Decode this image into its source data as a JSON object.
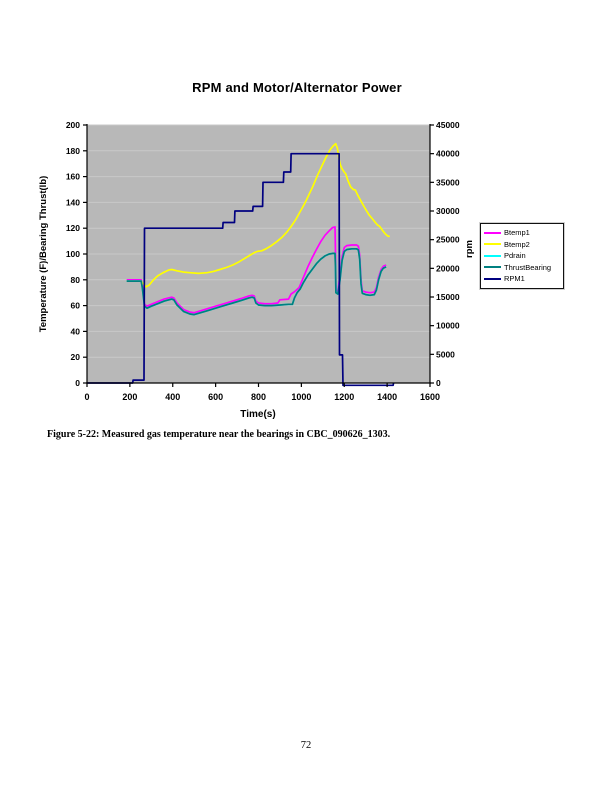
{
  "page": {
    "number": "72"
  },
  "figure_caption": "Figure 5-22:  Measured gas temperature near the bearings in CBC_090626_1303.",
  "chart_data": {
    "type": "line",
    "title": "RPM and Motor/Alternator Power",
    "xlabel": "Time(s)",
    "ylabel_left": "Temperature (F)/Bearing Thrust(lb)",
    "ylabel_right": "rpm",
    "xlim": [
      0,
      1600
    ],
    "x_ticks": [
      0,
      200,
      400,
      600,
      800,
      1000,
      1200,
      1400,
      1600
    ],
    "ylim_left": [
      0,
      200
    ],
    "y_ticks_left": [
      0,
      20,
      40,
      60,
      80,
      100,
      120,
      140,
      160,
      180,
      200
    ],
    "ylim_right": [
      0,
      45000
    ],
    "y_ticks_right": [
      0,
      5000,
      10000,
      15000,
      20000,
      25000,
      30000,
      35000,
      40000,
      45000
    ],
    "grid": {
      "show": true,
      "color": "#c9c9c9",
      "left_axis_step": 20
    },
    "plot_bg": "#b8b8b8",
    "axis_color": "#000000",
    "legend_position": "right",
    "series": [
      {
        "name": "Btemp1",
        "color": "#FF00FF",
        "axis": "left",
        "width": 1.7,
        "points": [
          [
            185,
            80
          ],
          [
            253,
            80
          ],
          [
            258,
            76
          ],
          [
            268,
            61
          ],
          [
            280,
            59.5
          ],
          [
            300,
            61
          ],
          [
            330,
            63
          ],
          [
            360,
            65
          ],
          [
            395,
            66.5
          ],
          [
            405,
            66
          ],
          [
            420,
            62
          ],
          [
            450,
            57
          ],
          [
            480,
            55
          ],
          [
            500,
            54.5
          ],
          [
            520,
            55.5
          ],
          [
            560,
            57.5
          ],
          [
            600,
            59.5
          ],
          [
            640,
            61.5
          ],
          [
            680,
            63.5
          ],
          [
            720,
            65.5
          ],
          [
            755,
            67.5
          ],
          [
            770,
            68
          ],
          [
            780,
            67.5
          ],
          [
            788,
            63.5
          ],
          [
            800,
            62
          ],
          [
            830,
            61.5
          ],
          [
            860,
            61.5
          ],
          [
            890,
            62
          ],
          [
            900,
            64.5
          ],
          [
            940,
            65
          ],
          [
            952,
            69
          ],
          [
            970,
            71
          ],
          [
            990,
            74
          ],
          [
            1010,
            82
          ],
          [
            1030,
            90
          ],
          [
            1050,
            97
          ],
          [
            1070,
            103.5
          ],
          [
            1090,
            109.5
          ],
          [
            1110,
            114.5
          ],
          [
            1130,
            118
          ],
          [
            1145,
            120.5
          ],
          [
            1157,
            121
          ],
          [
            1159,
            100
          ],
          [
            1161,
            72
          ],
          [
            1170,
            71
          ],
          [
            1180,
            83
          ],
          [
            1190,
            98
          ],
          [
            1200,
            105
          ],
          [
            1212,
            106.5
          ],
          [
            1235,
            107
          ],
          [
            1258,
            107
          ],
          [
            1266,
            106
          ],
          [
            1272,
            99
          ],
          [
            1278,
            80
          ],
          [
            1284,
            71.5
          ],
          [
            1300,
            70.5
          ],
          [
            1320,
            70
          ],
          [
            1340,
            70.5
          ],
          [
            1350,
            74
          ],
          [
            1360,
            82
          ],
          [
            1372,
            88
          ],
          [
            1382,
            90.5
          ],
          [
            1395,
            91.5
          ]
        ]
      },
      {
        "name": "Btemp2",
        "color": "#FFFF00",
        "axis": "left",
        "width": 1.7,
        "points": [
          [
            185,
            79
          ],
          [
            253,
            79
          ],
          [
            262,
            77
          ],
          [
            275,
            74.5
          ],
          [
            290,
            76
          ],
          [
            310,
            80
          ],
          [
            330,
            83
          ],
          [
            355,
            85.5
          ],
          [
            380,
            87.5
          ],
          [
            395,
            88
          ],
          [
            420,
            87
          ],
          [
            450,
            86
          ],
          [
            480,
            85.5
          ],
          [
            520,
            85
          ],
          [
            560,
            85.5
          ],
          [
            590,
            86.5
          ],
          [
            620,
            88
          ],
          [
            650,
            89.5
          ],
          [
            680,
            91.5
          ],
          [
            710,
            94
          ],
          [
            740,
            97
          ],
          [
            765,
            99.5
          ],
          [
            780,
            101
          ],
          [
            795,
            102
          ],
          [
            815,
            102.5
          ],
          [
            835,
            104
          ],
          [
            860,
            106.5
          ],
          [
            885,
            109.5
          ],
          [
            910,
            113
          ],
          [
            935,
            117.5
          ],
          [
            955,
            122
          ],
          [
            975,
            127
          ],
          [
            995,
            133
          ],
          [
            1015,
            139
          ],
          [
            1035,
            146
          ],
          [
            1055,
            153
          ],
          [
            1075,
            161
          ],
          [
            1095,
            168
          ],
          [
            1115,
            175
          ],
          [
            1135,
            181
          ],
          [
            1150,
            184
          ],
          [
            1160,
            185.5
          ],
          [
            1168,
            182
          ],
          [
            1175,
            174
          ],
          [
            1182,
            169
          ],
          [
            1190,
            166
          ],
          [
            1200,
            163.5
          ],
          [
            1207,
            162
          ],
          [
            1217,
            157
          ],
          [
            1230,
            152
          ],
          [
            1242,
            150
          ],
          [
            1252,
            149.5
          ],
          [
            1262,
            146
          ],
          [
            1275,
            142
          ],
          [
            1290,
            137.5
          ],
          [
            1302,
            134
          ],
          [
            1315,
            130.5
          ],
          [
            1330,
            127.5
          ],
          [
            1345,
            124.5
          ],
          [
            1355,
            122.5
          ],
          [
            1365,
            121.5
          ],
          [
            1380,
            118
          ],
          [
            1392,
            115.5
          ],
          [
            1402,
            114
          ],
          [
            1412,
            113.5
          ]
        ]
      },
      {
        "name": "Pdrain",
        "color": "#00FFFF",
        "axis": "left",
        "width": 1.7,
        "points": [
          [
            185,
            79
          ],
          [
            253,
            79
          ],
          [
            258,
            74
          ],
          [
            268,
            59.5
          ],
          [
            280,
            58
          ],
          [
            300,
            59.5
          ],
          [
            330,
            61.5
          ],
          [
            360,
            63.5
          ],
          [
            395,
            65
          ],
          [
            405,
            64.5
          ],
          [
            420,
            60.5
          ],
          [
            450,
            55.5
          ],
          [
            480,
            53.5
          ],
          [
            500,
            53
          ],
          [
            520,
            54
          ],
          [
            560,
            56
          ],
          [
            600,
            58
          ],
          [
            640,
            60
          ],
          [
            680,
            62
          ],
          [
            720,
            64
          ],
          [
            755,
            66
          ],
          [
            770,
            66.5
          ],
          [
            780,
            66
          ],
          [
            788,
            62
          ],
          [
            800,
            60.5
          ],
          [
            830,
            60
          ],
          [
            860,
            60
          ],
          [
            900,
            60.5
          ],
          [
            940,
            61
          ],
          [
            958,
            61
          ],
          [
            968,
            66
          ],
          [
            980,
            70
          ],
          [
            995,
            73
          ],
          [
            1010,
            78
          ],
          [
            1030,
            83.5
          ],
          [
            1050,
            88
          ],
          [
            1070,
            92.5
          ],
          [
            1090,
            96
          ],
          [
            1110,
            98.5
          ],
          [
            1130,
            100
          ],
          [
            1145,
            100.5
          ],
          [
            1157,
            100.5
          ],
          [
            1159,
            90
          ],
          [
            1161,
            70
          ],
          [
            1170,
            69
          ],
          [
            1180,
            80
          ],
          [
            1190,
            95
          ],
          [
            1200,
            102
          ],
          [
            1212,
            103.5
          ],
          [
            1235,
            104
          ],
          [
            1258,
            104
          ],
          [
            1266,
            103
          ],
          [
            1272,
            96
          ],
          [
            1278,
            77
          ],
          [
            1284,
            69.5
          ],
          [
            1300,
            68.5
          ],
          [
            1320,
            68
          ],
          [
            1340,
            68.5
          ],
          [
            1350,
            72
          ],
          [
            1360,
            80
          ],
          [
            1372,
            86.5
          ],
          [
            1382,
            89
          ],
          [
            1395,
            90
          ]
        ]
      },
      {
        "name": "ThrustBearing",
        "color": "#008080",
        "axis": "left",
        "width": 1.7,
        "points": [
          [
            185,
            79
          ],
          [
            253,
            79
          ],
          [
            258,
            74
          ],
          [
            268,
            59.5
          ],
          [
            280,
            58
          ],
          [
            300,
            59.5
          ],
          [
            330,
            61.5
          ],
          [
            360,
            63.5
          ],
          [
            395,
            65
          ],
          [
            405,
            64.5
          ],
          [
            420,
            60.5
          ],
          [
            450,
            55.5
          ],
          [
            480,
            53.5
          ],
          [
            500,
            53
          ],
          [
            520,
            54
          ],
          [
            560,
            56
          ],
          [
            600,
            58
          ],
          [
            640,
            60
          ],
          [
            680,
            62
          ],
          [
            720,
            64
          ],
          [
            755,
            66
          ],
          [
            770,
            66.5
          ],
          [
            780,
            66
          ],
          [
            788,
            62
          ],
          [
            800,
            60.5
          ],
          [
            830,
            60
          ],
          [
            860,
            60
          ],
          [
            900,
            60.5
          ],
          [
            940,
            61
          ],
          [
            958,
            61
          ],
          [
            968,
            66
          ],
          [
            980,
            70
          ],
          [
            995,
            73
          ],
          [
            1010,
            78
          ],
          [
            1030,
            83.5
          ],
          [
            1050,
            88
          ],
          [
            1070,
            92.5
          ],
          [
            1090,
            96
          ],
          [
            1110,
            98.5
          ],
          [
            1130,
            100
          ],
          [
            1145,
            100.5
          ],
          [
            1157,
            100.5
          ],
          [
            1159,
            90
          ],
          [
            1161,
            70
          ],
          [
            1170,
            69
          ],
          [
            1180,
            80
          ],
          [
            1190,
            95
          ],
          [
            1200,
            102
          ],
          [
            1212,
            103.5
          ],
          [
            1235,
            104
          ],
          [
            1258,
            104
          ],
          [
            1266,
            103
          ],
          [
            1272,
            96
          ],
          [
            1278,
            77
          ],
          [
            1284,
            69.5
          ],
          [
            1300,
            68.5
          ],
          [
            1320,
            68
          ],
          [
            1340,
            68.5
          ],
          [
            1350,
            72
          ],
          [
            1360,
            80
          ],
          [
            1372,
            86.5
          ],
          [
            1382,
            89
          ],
          [
            1395,
            90
          ]
        ]
      },
      {
        "name": "RPM1",
        "color": "#000080",
        "axis": "right",
        "width": 1.7,
        "points": [
          [
            0,
            0
          ],
          [
            213,
            0
          ],
          [
            215,
            500
          ],
          [
            266,
            500
          ],
          [
            268,
            27000
          ],
          [
            633,
            27000
          ],
          [
            635,
            28000
          ],
          [
            688,
            28000
          ],
          [
            690,
            30000
          ],
          [
            773,
            30000
          ],
          [
            775,
            30800
          ],
          [
            819,
            30800
          ],
          [
            821,
            35000
          ],
          [
            916,
            35000
          ],
          [
            918,
            36800
          ],
          [
            950,
            36800
          ],
          [
            952,
            40000
          ],
          [
            1176,
            40000
          ],
          [
            1178,
            4900
          ],
          [
            1192,
            4900
          ],
          [
            1194,
            -400
          ],
          [
            1428,
            -400
          ],
          [
            1430,
            0
          ]
        ]
      }
    ]
  },
  "layout_labels": {
    "note": ""
  }
}
